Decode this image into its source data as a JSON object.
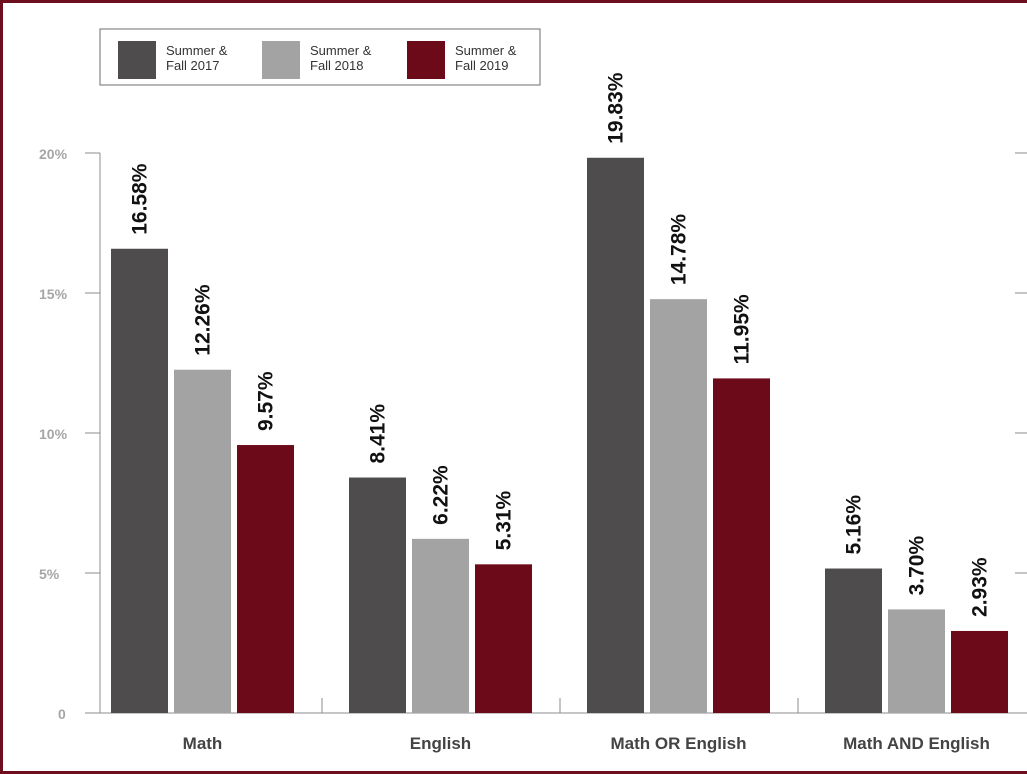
{
  "chart_data": {
    "type": "bar",
    "categories": [
      "Math",
      "English",
      "Math OR English",
      "Math AND English"
    ],
    "series": [
      {
        "name_lines": [
          "Summer &",
          "Fall 2017"
        ],
        "color": "#4f4c4d",
        "values": [
          16.58,
          8.41,
          19.83,
          5.16
        ],
        "labels": [
          "16.58%",
          "8.41%",
          "19.83%",
          "5.16%"
        ]
      },
      {
        "name_lines": [
          "Summer &",
          "Fall 2018"
        ],
        "color": "#a3a3a3",
        "values": [
          12.26,
          6.22,
          14.78,
          3.7
        ],
        "labels": [
          "12.26%",
          "6.22%",
          "14.78%",
          "3.70%"
        ]
      },
      {
        "name_lines": [
          "Summer &",
          "Fall 2019"
        ],
        "color": "#6d0a1a",
        "values": [
          9.57,
          5.31,
          11.95,
          2.93
        ],
        "labels": [
          "9.57%",
          "5.31%",
          "11.95%",
          "2.93%"
        ]
      }
    ],
    "yticks": [
      {
        "value": 0,
        "label": "0"
      },
      {
        "value": 5,
        "label": "5%"
      },
      {
        "value": 10,
        "label": "10%"
      },
      {
        "value": 15,
        "label": "15%"
      },
      {
        "value": 20,
        "label": "20%"
      }
    ],
    "ylim": [
      0,
      20
    ],
    "legend_position": "top-left",
    "title": "",
    "xlabel": "",
    "ylabel": ""
  },
  "colors": {
    "frame_border": "#6d0f1f",
    "axis": "#8c8c8c"
  }
}
